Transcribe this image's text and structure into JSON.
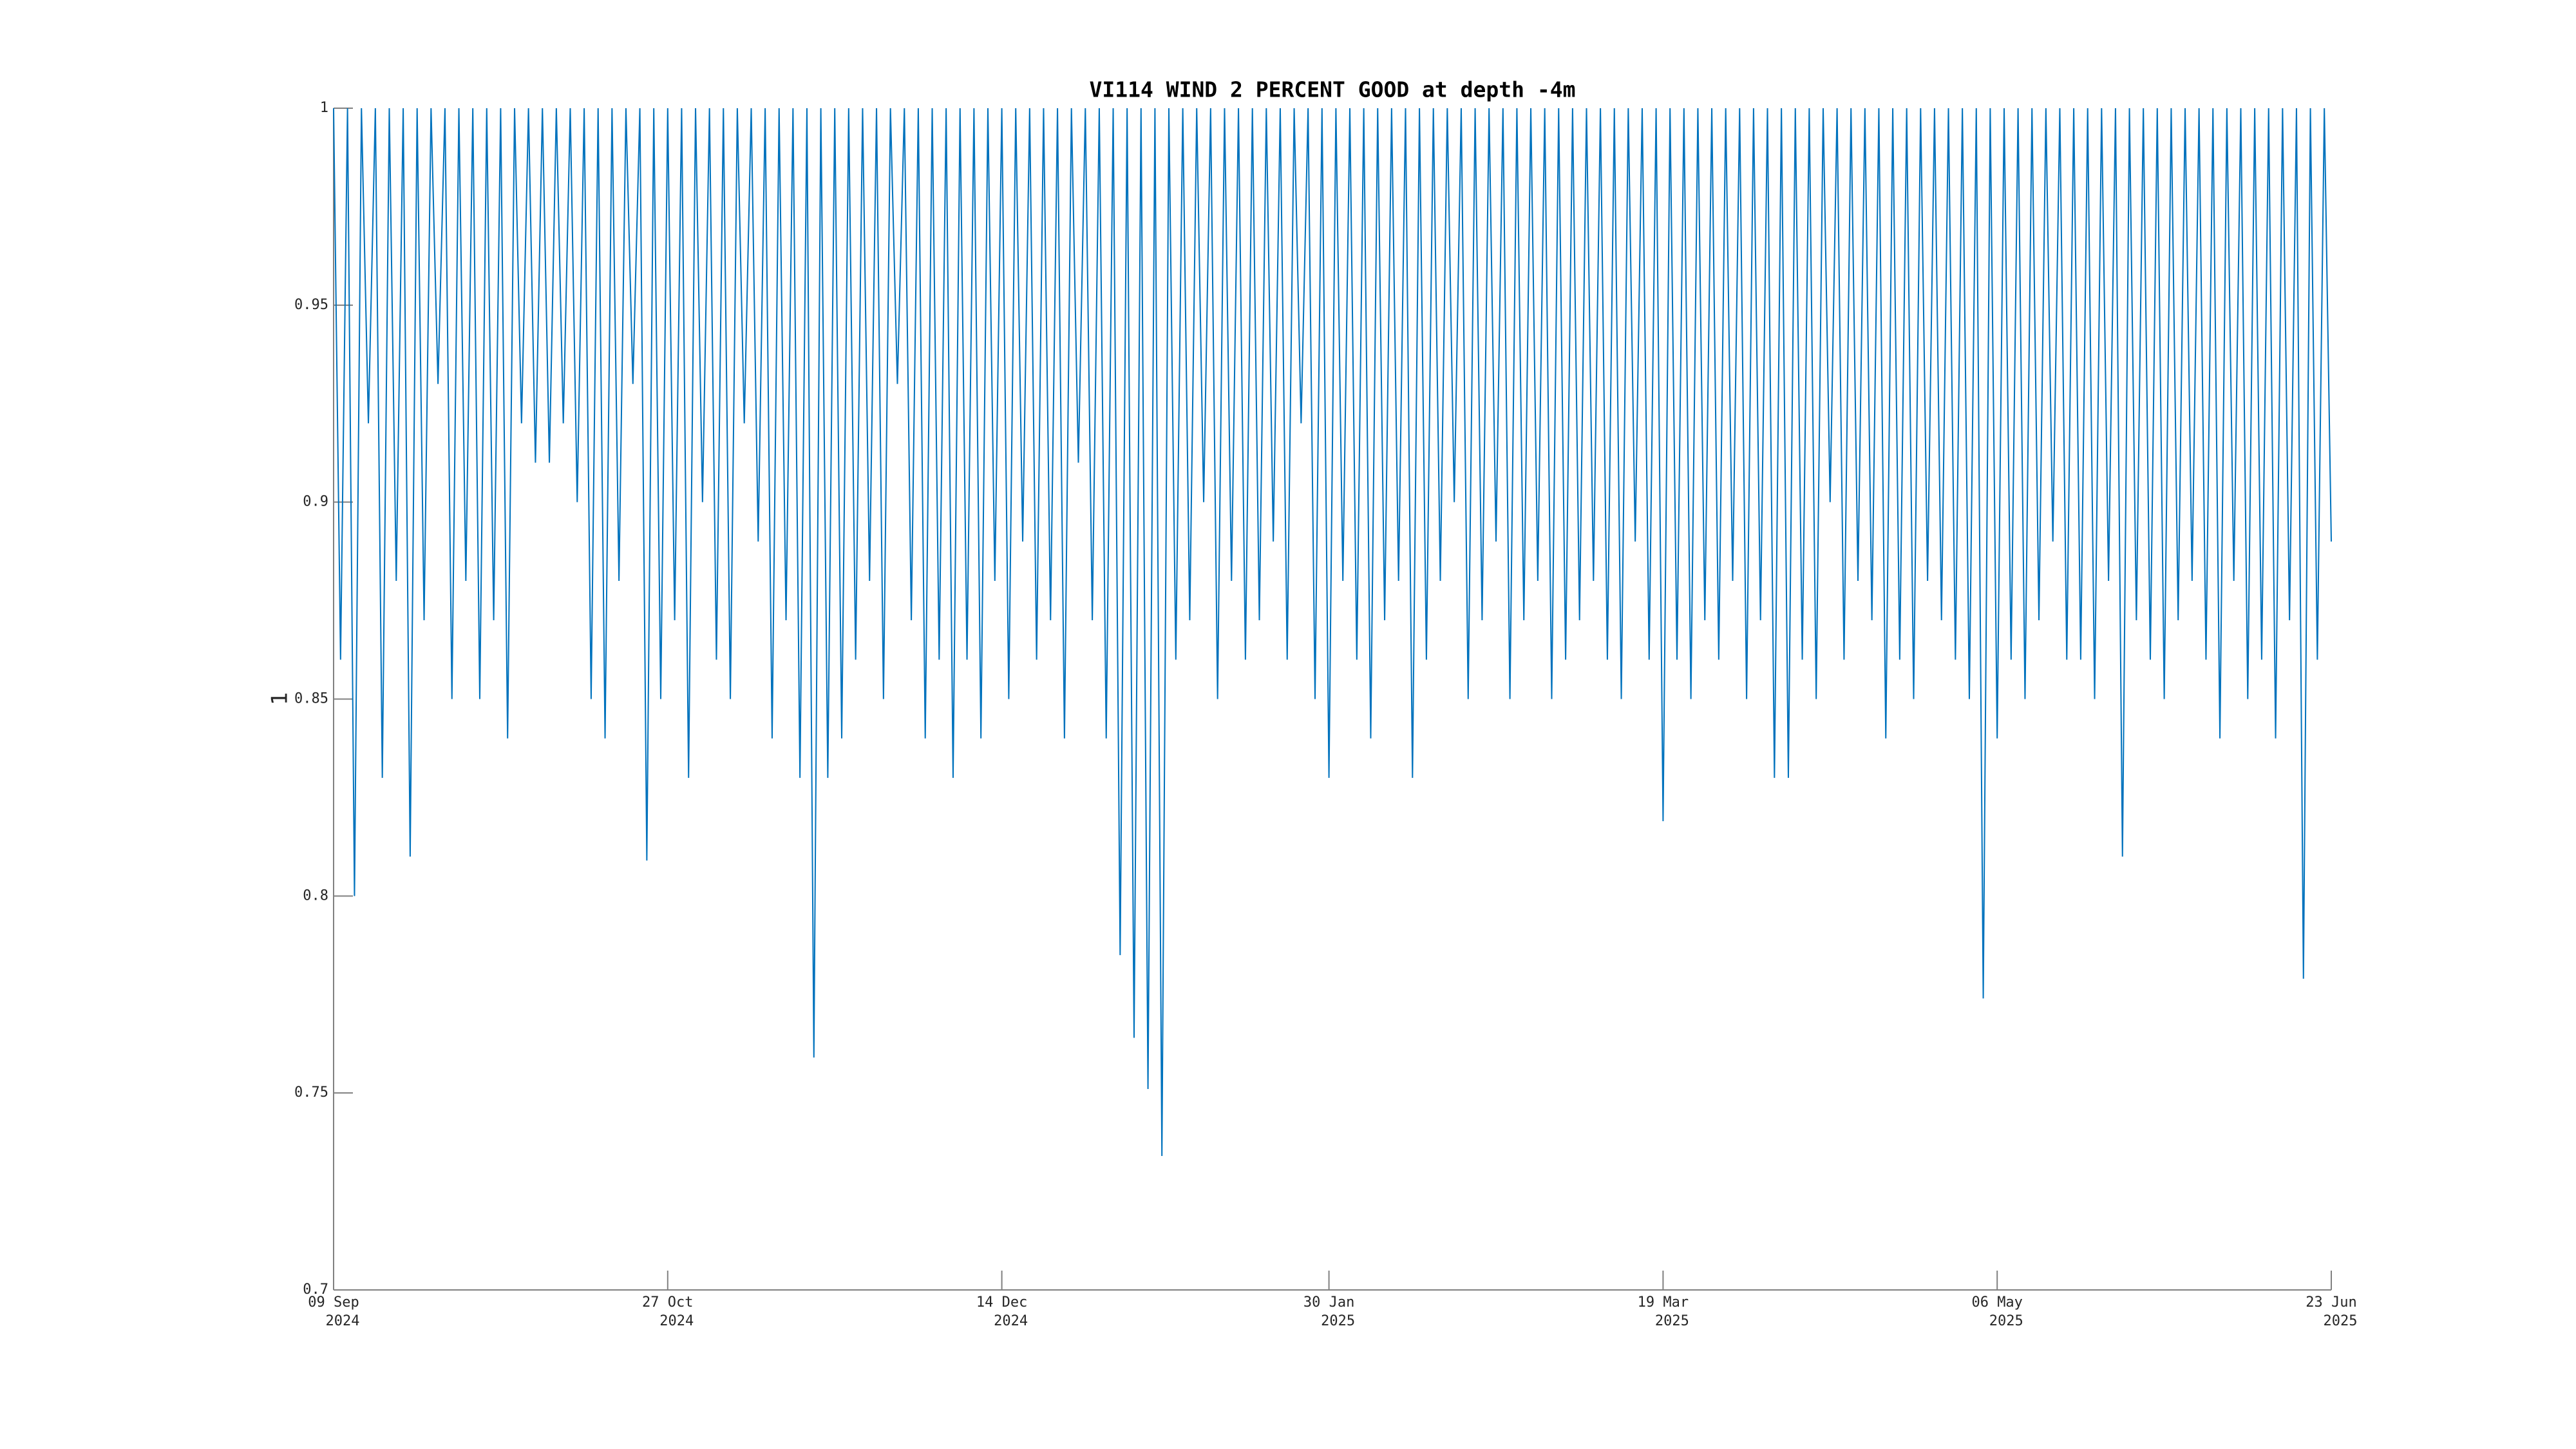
{
  "chart_data": {
    "type": "line",
    "title": "VI114 WIND 2 PERCENT GOOD at depth -4m",
    "ylabel": "1",
    "color": "#0072bd",
    "x": [
      "2024-09-09",
      "2024-09-10",
      "2024-09-11",
      "2024-09-12",
      "2024-09-13",
      "2024-09-14",
      "2024-09-15",
      "2024-09-16",
      "2024-09-17",
      "2024-09-18",
      "2024-09-19",
      "2024-09-20",
      "2024-09-21",
      "2024-09-22",
      "2024-09-23",
      "2024-09-24",
      "2024-09-25",
      "2024-09-26",
      "2024-09-27",
      "2024-09-28",
      "2024-09-29",
      "2024-09-30",
      "2024-10-01",
      "2024-10-02",
      "2024-10-03",
      "2024-10-04",
      "2024-10-05",
      "2024-10-06",
      "2024-10-07",
      "2024-10-08",
      "2024-10-09",
      "2024-10-10",
      "2024-10-11",
      "2024-10-12",
      "2024-10-13",
      "2024-10-14",
      "2024-10-15",
      "2024-10-16",
      "2024-10-17",
      "2024-10-18",
      "2024-10-19",
      "2024-10-20",
      "2024-10-21",
      "2024-10-22",
      "2024-10-23",
      "2024-10-24",
      "2024-10-25",
      "2024-10-26",
      "2024-10-27",
      "2024-10-28",
      "2024-10-29",
      "2024-10-30",
      "2024-10-31",
      "2024-11-01",
      "2024-11-02",
      "2024-11-03",
      "2024-11-04",
      "2024-11-05",
      "2024-11-06",
      "2024-11-07",
      "2024-11-08",
      "2024-11-09",
      "2024-11-10",
      "2024-11-11",
      "2024-11-12",
      "2024-11-13",
      "2024-11-14",
      "2024-11-15",
      "2024-11-16",
      "2024-11-17",
      "2024-11-18",
      "2024-11-19",
      "2024-11-20",
      "2024-11-21",
      "2024-11-22",
      "2024-11-23",
      "2024-11-24",
      "2024-11-25",
      "2024-11-26",
      "2024-11-27",
      "2024-11-28",
      "2024-11-29",
      "2024-11-30",
      "2024-12-01",
      "2024-12-02",
      "2024-12-03",
      "2024-12-04",
      "2024-12-05",
      "2024-12-06",
      "2024-12-07",
      "2024-12-08",
      "2024-12-09",
      "2024-12-10",
      "2024-12-11",
      "2024-12-12",
      "2024-12-13",
      "2024-12-14",
      "2024-12-15",
      "2024-12-16",
      "2024-12-17",
      "2024-12-18",
      "2024-12-19",
      "2024-12-20",
      "2024-12-21",
      "2024-12-22",
      "2024-12-23",
      "2024-12-24",
      "2024-12-25",
      "2024-12-26",
      "2024-12-27",
      "2024-12-28",
      "2024-12-29",
      "2024-12-30",
      "2024-12-31",
      "2025-01-01",
      "2025-01-02",
      "2025-01-03",
      "2025-01-04",
      "2025-01-05",
      "2025-01-06",
      "2025-01-07",
      "2025-01-08",
      "2025-01-09",
      "2025-01-10",
      "2025-01-11",
      "2025-01-12",
      "2025-01-13",
      "2025-01-14",
      "2025-01-15",
      "2025-01-16",
      "2025-01-17",
      "2025-01-18",
      "2025-01-19",
      "2025-01-20",
      "2025-01-21",
      "2025-01-22",
      "2025-01-23",
      "2025-01-24",
      "2025-01-25",
      "2025-01-26",
      "2025-01-27",
      "2025-01-28",
      "2025-01-29",
      "2025-01-30",
      "2025-01-31",
      "2025-02-01",
      "2025-02-02",
      "2025-02-03",
      "2025-02-04",
      "2025-02-05",
      "2025-02-06",
      "2025-02-07",
      "2025-02-08",
      "2025-02-09",
      "2025-02-10",
      "2025-02-11",
      "2025-02-12",
      "2025-02-13",
      "2025-02-14",
      "2025-02-15",
      "2025-02-16",
      "2025-02-17",
      "2025-02-18",
      "2025-02-19",
      "2025-02-20",
      "2025-02-21",
      "2025-02-22",
      "2025-02-23",
      "2025-02-24",
      "2025-02-25",
      "2025-02-26",
      "2025-02-27",
      "2025-02-28",
      "2025-03-01",
      "2025-03-02",
      "2025-03-03",
      "2025-03-04",
      "2025-03-05",
      "2025-03-06",
      "2025-03-07",
      "2025-03-08",
      "2025-03-09",
      "2025-03-10",
      "2025-03-11",
      "2025-03-12",
      "2025-03-13",
      "2025-03-14",
      "2025-03-15",
      "2025-03-16",
      "2025-03-17",
      "2025-03-18",
      "2025-03-19",
      "2025-03-20",
      "2025-03-21",
      "2025-03-22",
      "2025-03-23",
      "2025-03-24",
      "2025-03-25",
      "2025-03-26",
      "2025-03-27",
      "2025-03-28",
      "2025-03-29",
      "2025-03-30",
      "2025-03-31",
      "2025-04-01",
      "2025-04-02",
      "2025-04-03",
      "2025-04-04",
      "2025-04-05",
      "2025-04-06",
      "2025-04-07",
      "2025-04-08",
      "2025-04-09",
      "2025-04-10",
      "2025-04-11",
      "2025-04-12",
      "2025-04-13",
      "2025-04-14",
      "2025-04-15",
      "2025-04-16",
      "2025-04-17",
      "2025-04-18",
      "2025-04-19",
      "2025-04-20",
      "2025-04-21",
      "2025-04-22",
      "2025-04-23",
      "2025-04-24",
      "2025-04-25",
      "2025-04-26",
      "2025-04-27",
      "2025-04-28",
      "2025-04-29",
      "2025-04-30",
      "2025-05-01",
      "2025-05-02",
      "2025-05-03",
      "2025-05-04",
      "2025-05-05",
      "2025-05-06",
      "2025-05-07",
      "2025-05-08",
      "2025-05-09",
      "2025-05-10",
      "2025-05-11",
      "2025-05-12",
      "2025-05-13",
      "2025-05-14",
      "2025-05-15",
      "2025-05-16",
      "2025-05-17",
      "2025-05-18",
      "2025-05-19",
      "2025-05-20",
      "2025-05-21",
      "2025-05-22",
      "2025-05-23",
      "2025-05-24",
      "2025-05-25",
      "2025-05-26",
      "2025-05-27",
      "2025-05-28",
      "2025-05-29",
      "2025-05-30",
      "2025-05-31",
      "2025-06-01",
      "2025-06-02",
      "2025-06-03",
      "2025-06-04",
      "2025-06-05",
      "2025-06-06",
      "2025-06-07",
      "2025-06-08",
      "2025-06-09",
      "2025-06-10",
      "2025-06-11",
      "2025-06-12",
      "2025-06-13",
      "2025-06-14",
      "2025-06-15",
      "2025-06-16",
      "2025-06-17",
      "2025-06-18",
      "2025-06-19",
      "2025-06-20",
      "2025-06-21",
      "2025-06-22",
      "2025-06-23"
    ],
    "values": [
      1,
      0.86,
      1,
      0.8,
      1,
      0.92,
      1,
      0.83,
      1,
      0.88,
      1,
      0.81,
      1,
      0.87,
      1,
      0.93,
      1,
      0.85,
      1,
      0.88,
      1,
      0.85,
      1,
      0.87,
      1,
      0.84,
      1,
      0.92,
      1,
      0.91,
      1,
      0.91,
      1,
      0.92,
      1,
      0.9,
      1,
      0.85,
      1,
      0.84,
      1,
      0.88,
      1,
      0.93,
      1,
      0.809,
      1,
      0.85,
      1,
      0.87,
      1,
      0.83,
      1,
      0.9,
      1,
      0.86,
      1,
      0.85,
      1,
      0.92,
      1,
      0.89,
      1,
      0.84,
      1,
      0.87,
      1,
      0.83,
      1,
      0.759,
      1,
      0.83,
      1,
      0.84,
      1,
      0.86,
      1,
      0.88,
      1,
      0.85,
      1,
      0.93,
      1,
      0.87,
      1,
      0.84,
      1,
      0.86,
      1,
      0.83,
      1,
      0.86,
      1,
      0.84,
      1,
      0.88,
      1,
      0.85,
      1,
      0.89,
      1,
      0.86,
      1,
      0.87,
      1,
      0.84,
      1,
      0.91,
      1,
      0.87,
      1,
      0.84,
      1,
      0.785,
      1,
      0.764,
      1,
      0.751,
      1,
      0.734,
      1,
      0.86,
      1,
      0.87,
      1,
      0.9,
      1,
      0.85,
      1,
      0.88,
      1,
      0.86,
      1,
      0.87,
      1,
      0.89,
      1,
      0.86,
      1,
      0.92,
      1,
      0.85,
      1,
      0.83,
      1,
      0.88,
      1,
      0.86,
      1,
      0.84,
      1,
      0.87,
      1,
      0.88,
      1,
      0.83,
      1,
      0.86,
      1,
      0.88,
      1,
      0.9,
      1,
      0.85,
      1,
      0.87,
      1,
      0.89,
      1,
      0.85,
      1,
      0.87,
      1,
      0.88,
      1,
      0.85,
      1,
      0.86,
      1,
      0.87,
      1,
      0.88,
      1,
      0.86,
      1,
      0.85,
      1,
      0.89,
      1,
      0.86,
      1,
      0.819,
      1,
      0.86,
      1,
      0.85,
      1,
      0.87,
      1,
      0.86,
      1,
      0.88,
      1,
      0.85,
      1,
      0.87,
      1,
      0.83,
      1,
      0.83,
      1,
      0.86,
      1,
      0.85,
      1,
      0.9,
      1,
      0.86,
      1,
      0.88,
      1,
      0.87,
      1,
      0.84,
      1,
      0.86,
      1,
      0.85,
      1,
      0.88,
      1,
      0.87,
      1,
      0.86,
      1,
      0.85,
      1,
      0.774,
      1,
      0.84,
      1,
      0.86,
      1,
      0.85,
      1,
      0.87,
      1,
      0.89,
      1,
      0.86,
      1,
      0.86,
      1,
      0.85,
      1,
      0.88,
      1,
      0.81,
      1,
      0.87,
      1,
      0.86,
      1,
      0.85,
      1,
      0.87,
      1,
      0.88,
      1,
      0.86,
      1,
      0.84,
      1,
      0.88,
      1,
      0.85,
      1,
      0.86,
      1,
      0.84,
      1,
      0.87,
      1,
      0.779,
      1,
      0.86,
      1,
      0.89
    ],
    "xlim": [
      "2024-09-09",
      "2025-06-23"
    ],
    "xticks": [
      {
        "value": "2024-09-09",
        "label": [
          "09 Sep",
          "2024"
        ]
      },
      {
        "value": "2024-10-27",
        "label": [
          "27 Oct",
          "2024"
        ]
      },
      {
        "value": "2024-12-14",
        "label": [
          "14 Dec",
          "2024"
        ]
      },
      {
        "value": "2025-01-30",
        "label": [
          "30 Jan",
          "2025"
        ]
      },
      {
        "value": "2025-03-19",
        "label": [
          "19 Mar",
          "2025"
        ]
      },
      {
        "value": "2025-05-06",
        "label": [
          "06 May",
          "2025"
        ]
      },
      {
        "value": "2025-06-23",
        "label": [
          "23 Jun",
          "2025"
        ]
      }
    ],
    "ylim": [
      0.7,
      1
    ],
    "yticks": [
      0.7,
      0.75,
      0.8,
      0.85,
      0.9,
      0.95,
      1
    ],
    "grid": false
  }
}
